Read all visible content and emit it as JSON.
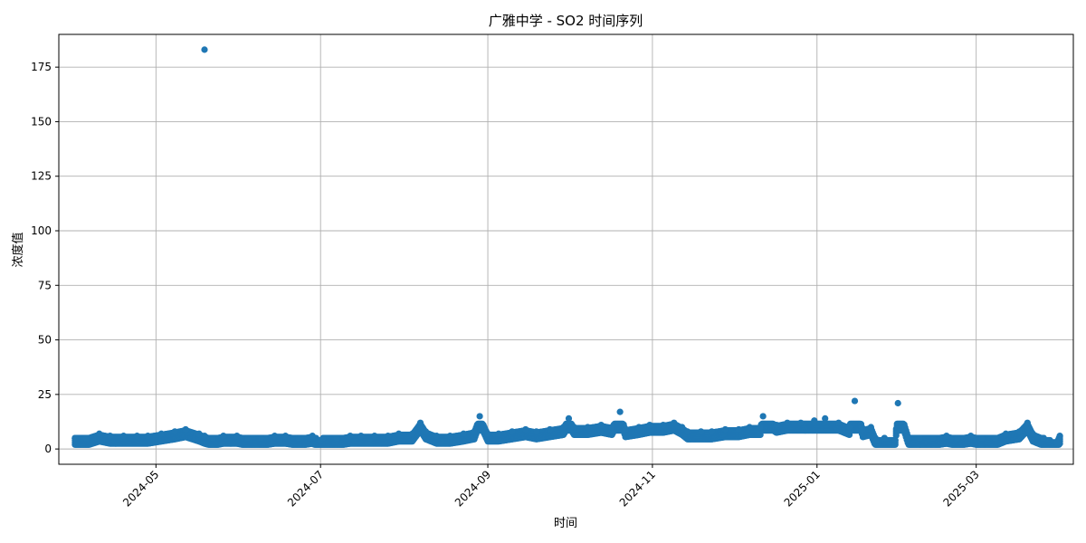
{
  "chart_data": {
    "type": "scatter",
    "title": "广雅中学 - SO2 时间序列",
    "xlabel": "时间",
    "ylabel": "浓度值",
    "x_axis_type": "date",
    "xlim": [
      "2024-03-26",
      "2025-04-06"
    ],
    "ylim": [
      -7,
      190
    ],
    "y_ticks": [
      0,
      25,
      50,
      75,
      100,
      125,
      150,
      175
    ],
    "x_ticks": [
      "2024-05",
      "2024-07",
      "2024-09",
      "2024-11",
      "2025-01",
      "2025-03"
    ],
    "x_tick_dates": [
      "2024-05-01",
      "2024-07-01",
      "2024-09-01",
      "2024-11-01",
      "2025-01-01",
      "2025-03-01"
    ],
    "grid": true,
    "marker_color": "#1f77b4",
    "series": [
      {
        "x": [
          "2024-04-01",
          "2024-04-05",
          "2024-04-10",
          "2024-04-14",
          "2024-04-19",
          "2024-04-24",
          "2024-04-28",
          "2024-05-03",
          "2024-05-08",
          "2024-05-12",
          "2024-05-17",
          "2024-05-19",
          "2024-05-22",
          "2024-05-26",
          "2024-05-31",
          "2024-06-04",
          "2024-06-09",
          "2024-06-14",
          "2024-06-18",
          "2024-06-23",
          "2024-06-28",
          "2024-07-01",
          "2024-07-02",
          "2024-07-07",
          "2024-07-12",
          "2024-07-16",
          "2024-07-21",
          "2024-07-26",
          "2024-07-30",
          "2024-08-04",
          "2024-08-07",
          "2024-08-09",
          "2024-08-13",
          "2024-08-18",
          "2024-08-23",
          "2024-08-27",
          "2024-08-29",
          "2024-09-01",
          "2024-09-05",
          "2024-09-10",
          "2024-09-15",
          "2024-09-19",
          "2024-09-24",
          "2024-09-29",
          "2024-10-01",
          "2024-10-03",
          "2024-10-08",
          "2024-10-13",
          "2024-10-17",
          "2024-10-20",
          "2024-10-22",
          "2024-10-27",
          "2024-10-31",
          "2024-11-05",
          "2024-11-09",
          "2024-11-12",
          "2024-11-14",
          "2024-11-19",
          "2024-11-23",
          "2024-11-28",
          "2024-12-03",
          "2024-12-07",
          "2024-12-11",
          "2024-12-12",
          "2024-12-17",
          "2024-12-21",
          "2024-12-26",
          "2024-12-31",
          "2025-01-04",
          "2025-01-09",
          "2025-01-13",
          "2025-01-15",
          "2025-01-18",
          "2025-01-21",
          "2025-01-23",
          "2025-01-26",
          "2025-01-30",
          "2025-01-31",
          "2025-02-04",
          "2025-02-08",
          "2025-02-13",
          "2025-02-18",
          "2025-02-22",
          "2025-02-27",
          "2025-03-03",
          "2025-03-08",
          "2025-03-12",
          "2025-03-17",
          "2025-03-20",
          "2025-03-22",
          "2025-03-26",
          "2025-03-31",
          "2025-04-01",
          "2024-05-19"
        ],
        "y": [
          5,
          5,
          7,
          6,
          6,
          6,
          6,
          7,
          8,
          9,
          7,
          6,
          5,
          6,
          6,
          5,
          5,
          6,
          6,
          5,
          6,
          4,
          5,
          5,
          6,
          6,
          6,
          6,
          7,
          7,
          12,
          8,
          6,
          6,
          7,
          8,
          15,
          7,
          7,
          8,
          9,
          8,
          9,
          10,
          14,
          10,
          10,
          11,
          10,
          17,
          9,
          10,
          11,
          11,
          12,
          10,
          8,
          8,
          8,
          9,
          9,
          10,
          10,
          15,
          11,
          12,
          12,
          13,
          14,
          12,
          10,
          22,
          9,
          10,
          4,
          5,
          4,
          21,
          5,
          5,
          5,
          6,
          5,
          6,
          5,
          5,
          7,
          8,
          12,
          7,
          5,
          3,
          6,
          183
        ]
      }
    ]
  }
}
